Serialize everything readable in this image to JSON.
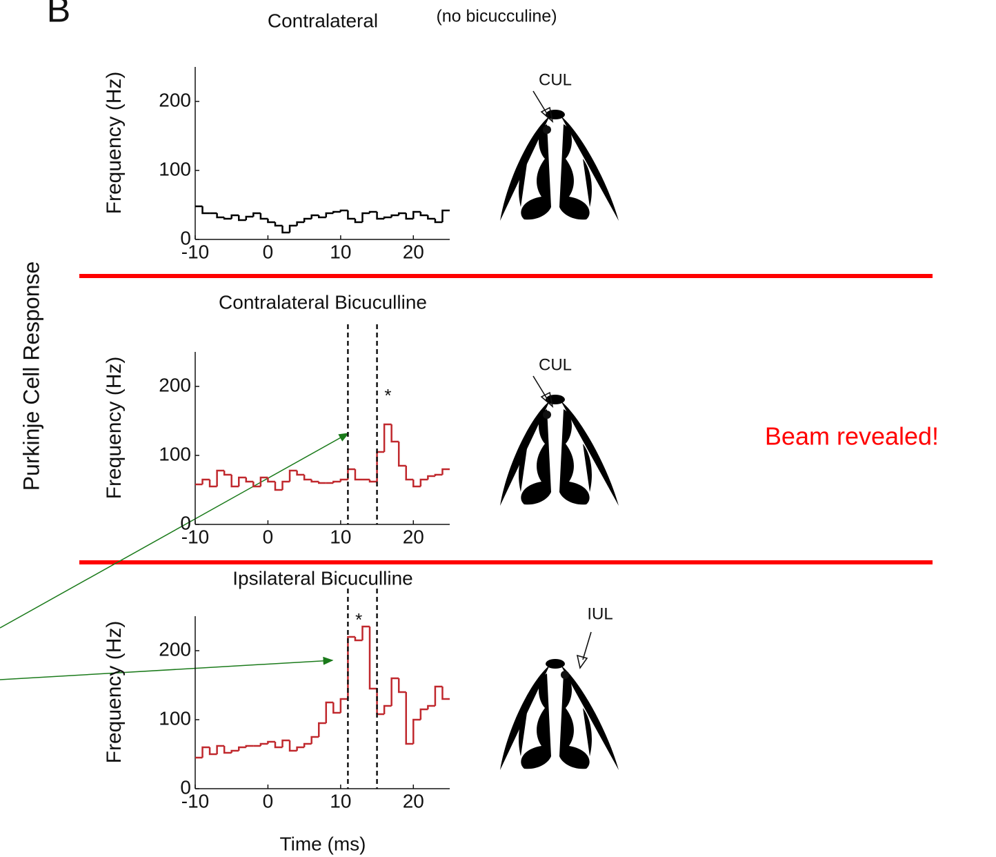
{
  "panel_label": "B",
  "side_label": "Purkinje Cell Response",
  "callout": "Beam revealed!",
  "chart_data": [
    {
      "type": "step",
      "title": "Contralateral",
      "subtitle": "(no bicucculine)",
      "ylabel": "Frequency (Hz)",
      "bins_start": -10,
      "bin_width": 1,
      "values": [
        48,
        38,
        38,
        32,
        30,
        35,
        28,
        33,
        38,
        30,
        25,
        20,
        10,
        20,
        25,
        30,
        35,
        32,
        38,
        40,
        42,
        30,
        25,
        38,
        40,
        30,
        32,
        35,
        38,
        30,
        40,
        35,
        30,
        25,
        42
      ],
      "color": "#000000",
      "xlim": [
        -10,
        25
      ],
      "ylim": [
        0,
        250
      ],
      "xticks": [
        -10,
        0,
        10,
        20
      ],
      "yticks": [
        0,
        100,
        200
      ],
      "vlines": [],
      "annotations": [],
      "diagram_label": "CUL",
      "diagram_side": "left"
    },
    {
      "type": "step",
      "title": "Contralateral Bicuculline",
      "ylabel": "Frequency (Hz)",
      "bins_start": -10,
      "bin_width": 1,
      "values": [
        58,
        65,
        55,
        78,
        72,
        55,
        68,
        62,
        55,
        68,
        62,
        50,
        62,
        78,
        72,
        65,
        62,
        60,
        60,
        62,
        65,
        80,
        65,
        65,
        62,
        105,
        145,
        120,
        85,
        65,
        55,
        65,
        70,
        72,
        80
      ],
      "color": "#c0282d",
      "xlim": [
        -10,
        25
      ],
      "ylim": [
        0,
        250
      ],
      "xticks": [
        -10,
        0,
        10,
        20
      ],
      "yticks": [
        0,
        100,
        200
      ],
      "vlines": [
        11,
        15
      ],
      "annotations": [
        {
          "text": "*",
          "x": 16.5,
          "y": 185
        }
      ],
      "diagram_label": "CUL",
      "diagram_side": "left"
    },
    {
      "type": "step",
      "title": "Ipsilateral Bicuculline",
      "ylabel": "Frequency (Hz)",
      "xlabel": "Time (ms)",
      "bins_start": -10,
      "bin_width": 1,
      "values": [
        45,
        60,
        50,
        62,
        52,
        55,
        60,
        62,
        62,
        65,
        68,
        60,
        70,
        55,
        60,
        65,
        75,
        95,
        125,
        110,
        130,
        220,
        215,
        235,
        145,
        108,
        120,
        160,
        140,
        65,
        100,
        115,
        120,
        148,
        130
      ],
      "color": "#c0282d",
      "xlim": [
        -10,
        25
      ],
      "ylim": [
        0,
        250
      ],
      "xticks": [
        -10,
        0,
        10,
        20
      ],
      "yticks": [
        0,
        100,
        200
      ],
      "vlines": [
        11,
        15
      ],
      "annotations": [
        {
          "text": "*",
          "x": 12.5,
          "y": 243
        }
      ],
      "diagram_label": "IUL",
      "diagram_side": "right"
    }
  ]
}
